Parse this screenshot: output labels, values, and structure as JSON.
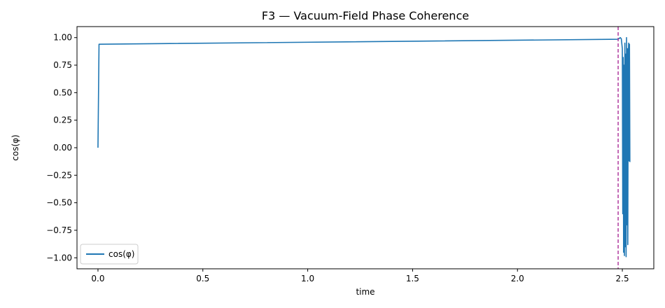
{
  "chart_data": {
    "type": "line",
    "title": "F3 — Vacuum-Field Phase Coherence",
    "xlabel": "time",
    "ylabel": "cos(φ)",
    "xlim": [
      -0.1,
      2.65
    ],
    "ylim": [
      -1.1,
      1.1
    ],
    "xticks": [
      0.0,
      0.5,
      1.0,
      1.5,
      2.0,
      2.5
    ],
    "xtick_labels": [
      "0.0",
      "0.5",
      "1.0",
      "1.5",
      "2.0",
      "2.5"
    ],
    "yticks": [
      1.0,
      0.75,
      0.5,
      0.25,
      0.0,
      -0.25,
      -0.5,
      -0.75,
      -1.0
    ],
    "ytick_labels": [
      "1.00",
      "0.75",
      "0.50",
      "0.25",
      "0.00",
      "−0.25",
      "−0.50",
      "−0.75",
      "−1.00"
    ],
    "grid": false,
    "legend_position": "lower-left",
    "series": [
      {
        "name": "cos(φ)",
        "color": "#1f77b4",
        "x": [
          0.0,
          0.005,
          2.48,
          2.49,
          2.495,
          2.5,
          2.502,
          2.504,
          2.506,
          2.508,
          2.51,
          2.512,
          2.514,
          2.516,
          2.518,
          2.52,
          2.522,
          2.524,
          2.526,
          2.528,
          2.53,
          2.532,
          2.534,
          2.536
        ],
        "y": [
          0.0,
          0.94,
          0.985,
          1.0,
          0.99,
          0.9,
          -0.6,
          0.82,
          -0.95,
          0.75,
          -0.98,
          0.95,
          -0.9,
          0.85,
          -0.99,
          1.0,
          -0.7,
          0.9,
          -0.88,
          0.78,
          0.95,
          -0.12,
          0.94,
          -0.13
        ]
      }
    ],
    "reference_line": {
      "orientation": "vertical",
      "x": 2.48,
      "color": "#b03a9e",
      "style": "dashed"
    }
  }
}
